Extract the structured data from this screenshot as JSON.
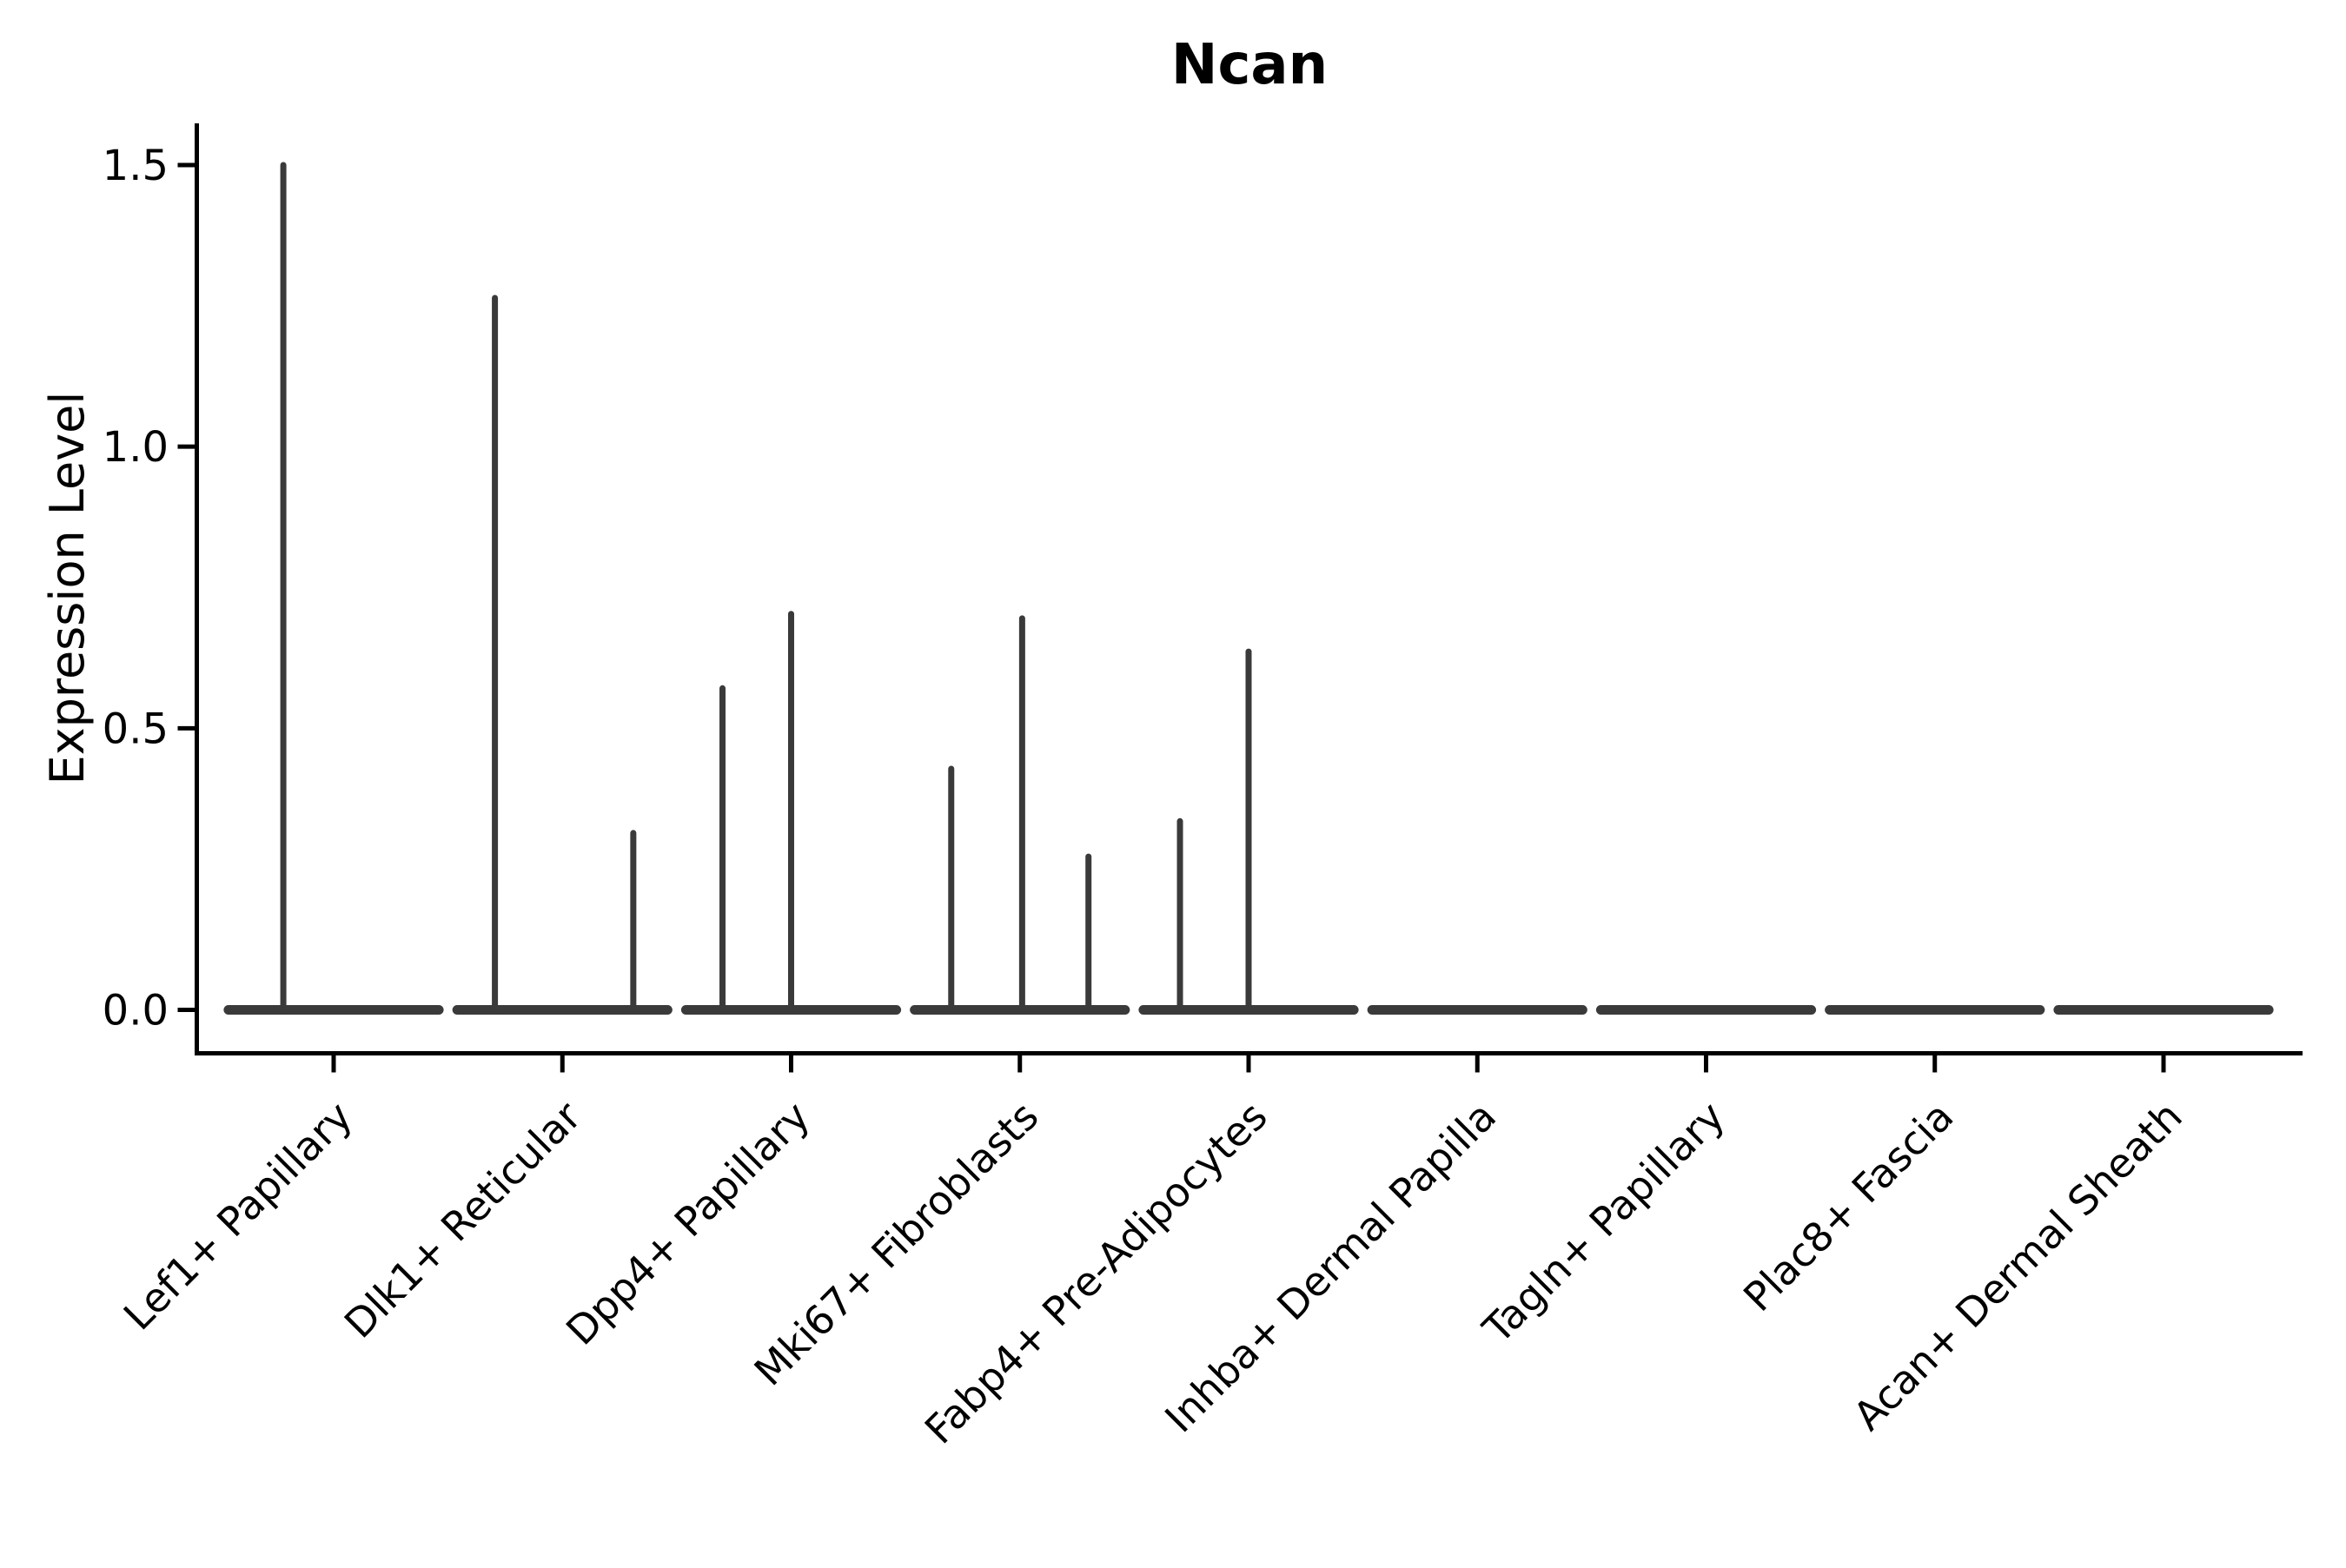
{
  "chart_data": {
    "type": "violin",
    "title": "Ncan",
    "xlabel": "",
    "ylabel": "Expression Level",
    "yticks": [
      "0.0",
      "0.5",
      "1.0",
      "1.5"
    ],
    "ytick_values": [
      0.0,
      0.5,
      1.0,
      1.5
    ],
    "ylim": [
      -0.07,
      1.57
    ],
    "grid": false,
    "legend": "none",
    "x_tick_rotation": 45,
    "violin_halfwidth": 0.46,
    "colors": {
      "violin": "#3a3a3a",
      "axis": "#000000",
      "text": "#000000",
      "background": "#ffffff"
    },
    "categories": [
      "Lef1+ Papillary",
      "Dlk1+ Reticular",
      "Dpp4+ Papillary",
      "Mki67+ Fibroblasts",
      "Fabp4+ Pre-Adipocytes",
      "Inhba+ Dermal Papilla",
      "Tagln+ Papillary",
      "Plac8+ Fascia",
      "Acan+ Dermal Sheath"
    ],
    "violins": [
      {
        "category": "Lef1+ Papillary",
        "spikes": [
          {
            "offset": -0.22,
            "value": 1.5
          }
        ]
      },
      {
        "category": "Dlk1+ Reticular",
        "spikes": [
          {
            "offset": -0.295,
            "value": 1.264
          },
          {
            "offset": 0.31,
            "value": 0.314
          }
        ]
      },
      {
        "category": "Dpp4+ Papillary",
        "spikes": [
          {
            "offset": -0.3,
            "value": 0.571
          },
          {
            "offset": 0.0,
            "value": 0.703
          }
        ]
      },
      {
        "category": "Mki67+ Fibroblasts",
        "spikes": [
          {
            "offset": -0.3,
            "value": 0.428
          },
          {
            "offset": 0.01,
            "value": 0.695
          },
          {
            "offset": 0.3,
            "value": 0.272
          }
        ]
      },
      {
        "category": "Fabp4+ Pre-Adipocytes",
        "spikes": [
          {
            "offset": -0.3,
            "value": 0.335
          },
          {
            "offset": 0.0,
            "value": 0.636
          }
        ]
      },
      {
        "category": "Inhba+ Dermal Papilla",
        "spikes": []
      },
      {
        "category": "Tagln+ Papillary",
        "spikes": []
      },
      {
        "category": "Plac8+ Fascia",
        "spikes": []
      },
      {
        "category": "Acan+ Dermal Sheath",
        "spikes": []
      }
    ]
  }
}
